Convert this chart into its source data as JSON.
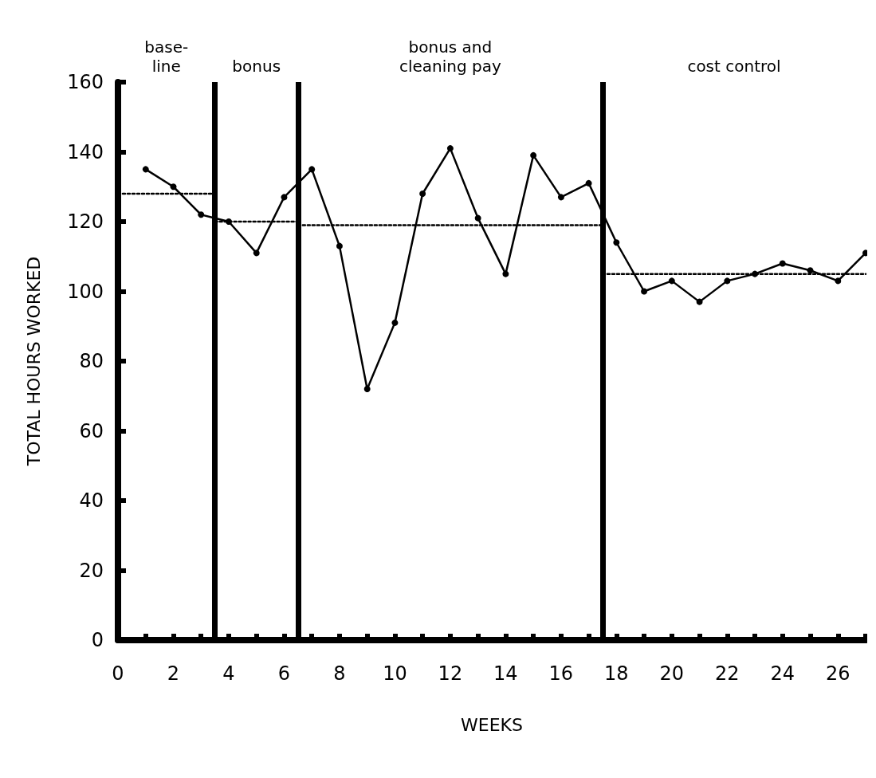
{
  "chart_data": {
    "type": "line",
    "xlabel": "WEEKS",
    "ylabel": "TOTAL HOURS WORKED",
    "xlim": [
      0,
      27
    ],
    "xticks": [
      0,
      2,
      4,
      6,
      8,
      10,
      12,
      14,
      16,
      18,
      20,
      22,
      24,
      26
    ],
    "ylim": [
      0,
      160
    ],
    "yticks": [
      0,
      20,
      40,
      60,
      80,
      100,
      120,
      140,
      160
    ],
    "grid": false,
    "series": [
      {
        "color": "#000000",
        "marker": "circle",
        "line_style": "solid",
        "x": [
          1,
          2,
          3,
          4,
          5,
          6,
          7,
          8,
          9,
          10,
          11,
          12,
          13,
          14,
          15,
          16,
          17,
          18,
          19,
          20,
          21,
          22,
          23,
          24,
          25,
          26,
          27
        ],
        "values": [
          135,
          130,
          122,
          120,
          111,
          127,
          135,
          113,
          72,
          91,
          128,
          141,
          121,
          105,
          139,
          127,
          131,
          114,
          100,
          103,
          97,
          103,
          105,
          108,
          106,
          103,
          111
        ]
      },
      {
        "color": "#000000",
        "marker": "none",
        "line_style": "dotted",
        "x": [
          0,
          3.5
        ],
        "values": [
          128,
          128
        ]
      },
      {
        "color": "#000000",
        "marker": "none",
        "line_style": "dotted",
        "x": [
          3.5,
          6.5
        ],
        "values": [
          120,
          120
        ]
      },
      {
        "color": "#000000",
        "marker": "none",
        "line_style": "dotted",
        "x": [
          6.5,
          17.5
        ],
        "values": [
          119,
          119
        ]
      },
      {
        "color": "#000000",
        "marker": "none",
        "line_style": "dotted",
        "x": [
          17.5,
          27
        ],
        "values": [
          105,
          105
        ]
      }
    ],
    "ref_lines": [
      {
        "axis": "x",
        "value": 3.5,
        "color": "#000000"
      },
      {
        "axis": "x",
        "value": 6.5,
        "color": "#000000"
      },
      {
        "axis": "x",
        "value": 17.5,
        "color": "#000000"
      }
    ],
    "annotations": [
      "base-\nline",
      "bonus",
      "bonus and\ncleaning pay",
      "cost control"
    ]
  }
}
